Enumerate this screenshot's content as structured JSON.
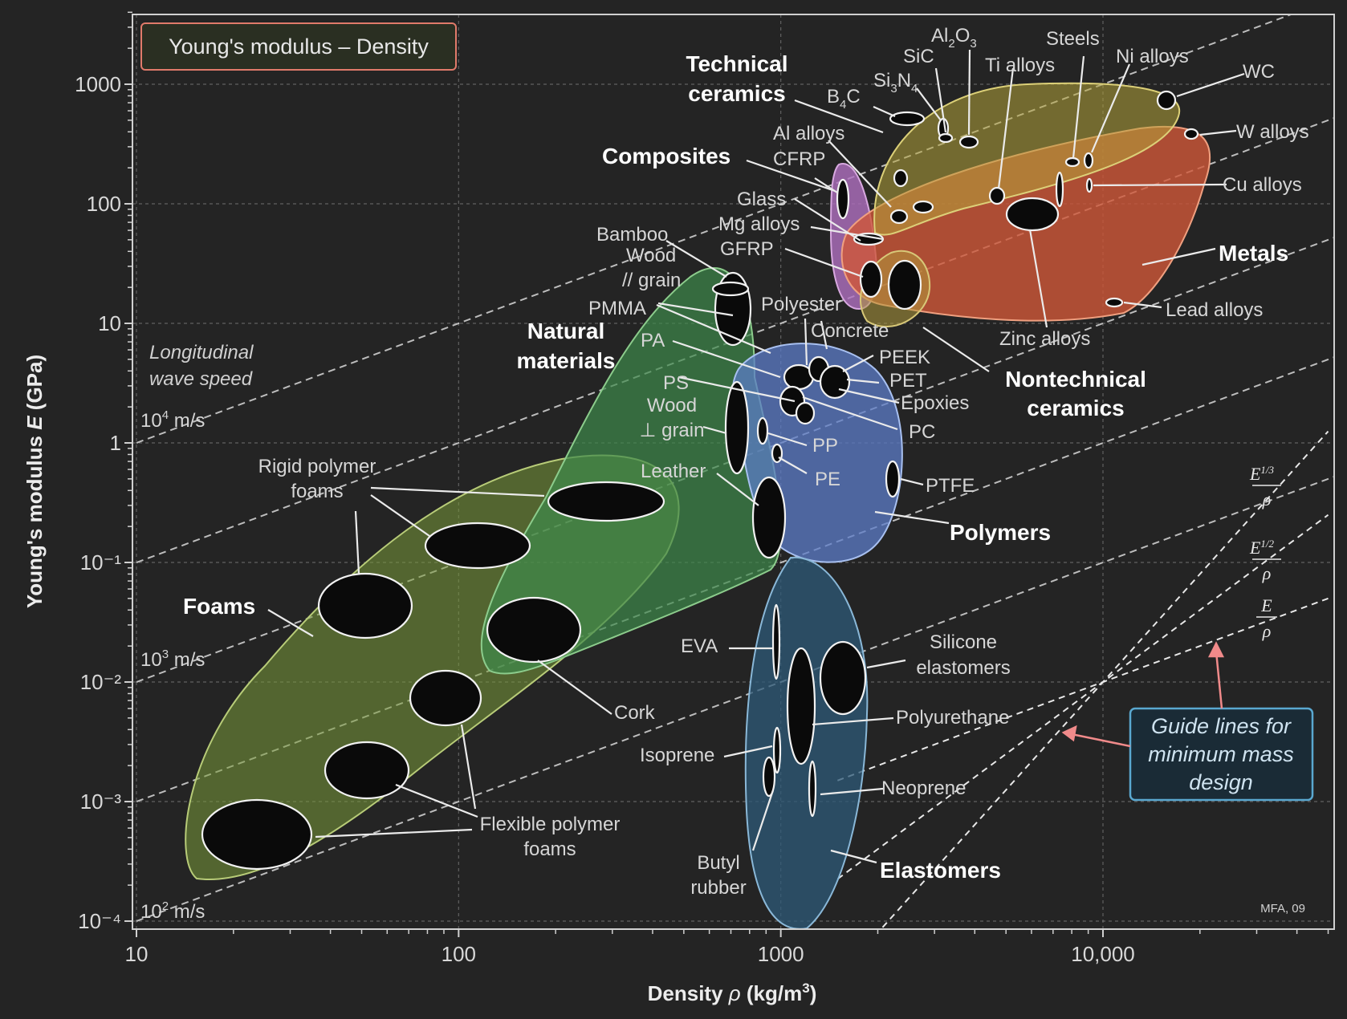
{
  "chart_data": {
    "type": "scatter",
    "title": "Young's modulus – Density",
    "xlabel": "Density ρ (kg/m³)",
    "ylabel": "Young's modulus E (GPa)",
    "xscale": "log",
    "yscale": "log",
    "xlim": [
      10,
      50000
    ],
    "ylim": [
      0.0001,
      4000
    ],
    "x_ticks": [
      {
        "value": 10,
        "label": "10"
      },
      {
        "value": 100,
        "label": "100"
      },
      {
        "value": 1000,
        "label": "1000"
      },
      {
        "value": 10000,
        "label": "10,000"
      }
    ],
    "y_ticks": [
      {
        "value": 1000,
        "label": "1000"
      },
      {
        "value": 100,
        "label": "100"
      },
      {
        "value": 10,
        "label": "10"
      },
      {
        "value": 1,
        "label": "1"
      },
      {
        "value": 0.1,
        "label": "10⁻¹"
      },
      {
        "value": 0.01,
        "label": "10⁻²"
      },
      {
        "value": 0.001,
        "label": "10⁻³"
      },
      {
        "value": 0.0001,
        "label": "10⁻⁴"
      }
    ],
    "grid": true,
    "families": [
      {
        "name": "Foams",
        "color": "#7a9a3a"
      },
      {
        "name": "Natural materials",
        "color": "#3f8a4c"
      },
      {
        "name": "Polymers",
        "color": "#5c7cc8"
      },
      {
        "name": "Elastomers",
        "color": "#2d5a78"
      },
      {
        "name": "Composites",
        "color": "#b070c0"
      },
      {
        "name": "Technical ceramics",
        "color": "#b4a43a"
      },
      {
        "name": "Metals",
        "color": "#d05838"
      },
      {
        "name": "Nontechnical ceramics",
        "color": "#b09a3c"
      }
    ],
    "materials": [
      {
        "name": "Rigid polymer foams",
        "density": 280,
        "modulus": 0.35
      },
      {
        "name": "Rigid polymer foams",
        "density": 110,
        "modulus": 0.14
      },
      {
        "name": "Foam",
        "density": 50,
        "modulus": 0.045
      },
      {
        "name": "Cork",
        "density": 190,
        "modulus": 0.028
      },
      {
        "name": "Flexible polymer foams",
        "density": 90,
        "modulus": 0.008
      },
      {
        "name": "Flexible polymer foams",
        "density": 48,
        "modulus": 0.0019
      },
      {
        "name": "Flexible polymer foams",
        "density": 24,
        "modulus": 0.0006
      },
      {
        "name": "Bamboo",
        "density": 700,
        "modulus": 17
      },
      {
        "name": "Wood // grain",
        "density": 690,
        "modulus": 11
      },
      {
        "name": "Wood ⊥ grain",
        "density": 700,
        "modulus": 1.2
      },
      {
        "name": "Leather",
        "density": 950,
        "modulus": 0.3
      },
      {
        "name": "PMMA",
        "density": 1180,
        "modulus": 3.2
      },
      {
        "name": "PA",
        "density": 1130,
        "modulus": 2.8
      },
      {
        "name": "PS",
        "density": 1050,
        "modulus": 2.5
      },
      {
        "name": "PEEK",
        "density": 1300,
        "modulus": 3.8
      },
      {
        "name": "PET",
        "density": 1350,
        "modulus": 3
      },
      {
        "name": "Epoxies",
        "density": 1200,
        "modulus": 2.3
      },
      {
        "name": "PC",
        "density": 1200,
        "modulus": 2.3
      },
      {
        "name": "PP",
        "density": 900,
        "modulus": 1.2
      },
      {
        "name": "PE",
        "density": 950,
        "modulus": 0.8
      },
      {
        "name": "PTFE",
        "density": 2200,
        "modulus": 0.5
      },
      {
        "name": "EVA",
        "density": 940,
        "modulus": 0.02
      },
      {
        "name": "Polyurethane",
        "density": 1150,
        "modulus": 0.012
      },
      {
        "name": "Silicone elastomers",
        "density": 1700,
        "modulus": 0.012
      },
      {
        "name": "Isoprene",
        "density": 930,
        "modulus": 0.002
      },
      {
        "name": "Neoprene",
        "density": 1250,
        "modulus": 0.002
      },
      {
        "name": "Butyl rubber",
        "density": 910,
        "modulus": 0.0015
      },
      {
        "name": "Glass",
        "density": 2500,
        "modulus": 70
      },
      {
        "name": "CFRP",
        "density": 1550,
        "modulus": 100
      },
      {
        "name": "GFRP",
        "density": 1800,
        "modulus": 20
      },
      {
        "name": "Concrete",
        "density": 2400,
        "modulus": 20
      },
      {
        "name": "Mg alloys",
        "density": 1800,
        "modulus": 45
      },
      {
        "name": "Al alloys",
        "density": 2700,
        "modulus": 72
      },
      {
        "name": "B₄C",
        "density": 2500,
        "modulus": 450
      },
      {
        "name": "Si₃N₄",
        "density": 3200,
        "modulus": 310
      },
      {
        "name": "SiC",
        "density": 3150,
        "modulus": 410
      },
      {
        "name": "Al₂O₃",
        "density": 3900,
        "modulus": 350
      },
      {
        "name": "Ti alloys",
        "density": 4500,
        "modulus": 110
      },
      {
        "name": "Steels",
        "density": 7800,
        "modulus": 210
      },
      {
        "name": "Ni alloys",
        "density": 8500,
        "modulus": 200
      },
      {
        "name": "Cu alloys",
        "density": 8900,
        "modulus": 130
      },
      {
        "name": "Zinc alloys",
        "density": 6500,
        "modulus": 80
      },
      {
        "name": "WC",
        "density": 15500,
        "modulus": 650
      },
      {
        "name": "W alloys",
        "density": 19000,
        "modulus": 380
      },
      {
        "name": "Lead alloys",
        "density": 11000,
        "modulus": 15
      }
    ],
    "guide_lines": {
      "formulas": [
        "E^1/3 / ρ",
        "E^1/2 / ρ",
        "E / ρ"
      ]
    }
  },
  "labels": {
    "title": "Young's modulus – Density",
    "x_axis_pre": "Density ",
    "x_axis_rho": "ρ",
    "x_axis_post": " (kg/m",
    "x_axis_sup": "3",
    "x_axis_end": ")",
    "y_axis_pre": "Young's modulus ",
    "y_axis_e": "E",
    "y_axis_post": " (GPa)",
    "wave_title_1": "Longitudinal",
    "wave_title_2": "wave speed",
    "wave_1e4_base": "10",
    "wave_1e4_exp": "4",
    "wave_1e4_unit": " m/s",
    "wave_1e3_base": "10",
    "wave_1e3_exp": "3",
    "wave_1e3_unit": " m/s",
    "wave_1e2_base": "10",
    "wave_1e2_exp": "2",
    "wave_1e2_unit": " m/s",
    "foams": "Foams",
    "natural_1": "Natural",
    "natural_2": "materials",
    "polymers": "Polymers",
    "elastomers": "Elastomers",
    "composites": "Composites",
    "tech_ceramics_1": "Technical",
    "tech_ceramics_2": "ceramics",
    "metals": "Metals",
    "nontech_1": "Nontechnical",
    "nontech_2": "ceramics",
    "rigid_foams_1": "Rigid polymer",
    "rigid_foams_2": "foams",
    "flex_foams_1": "Flexible polymer",
    "flex_foams_2": "foams",
    "cork": "Cork",
    "bamboo": "Bamboo",
    "wood_par_1": "Wood",
    "wood_par_2": "// grain",
    "pmma": "PMMA",
    "pa": "PA",
    "ps": "PS",
    "wood_perp_1": "Wood",
    "wood_perp_2": "⊥ grain",
    "leather": "Leather",
    "polyester": "Polyester",
    "concrete": "Concrete",
    "peek": "PEEK",
    "pet": "PET",
    "epoxies": "Epoxies",
    "pc": "PC",
    "pp": "PP",
    "pe": "PE",
    "ptfe": "PTFE",
    "eva": "EVA",
    "silicone_1": "Silicone",
    "silicone_2": "elastomers",
    "polyurethane": "Polyurethane",
    "isoprene": "Isoprene",
    "neoprene": "Neoprene",
    "butyl_1": "Butyl",
    "butyl_2": "rubber",
    "glass": "Glass",
    "mg": "Mg alloys",
    "gfrp": "GFRP",
    "cfrp": "CFRP",
    "al": "Al alloys",
    "b4c_pre": "B",
    "b4c_sub": "4",
    "b4c_post": "C",
    "si3n4_a": "Si",
    "si3n4_b": "3",
    "si3n4_c": "N",
    "si3n4_d": "4",
    "sic": "SiC",
    "al2o3_a": "Al",
    "al2o3_b": "2",
    "al2o3_c": "O",
    "al2o3_d": "3",
    "steels": "Steels",
    "ti": "Ti alloys",
    "ni": "Ni alloys",
    "wc": "WC",
    "w": "W alloys",
    "cu": "Cu alloys",
    "zinc": "Zinc alloys",
    "lead": "Lead alloys",
    "guide_1": "Guide lines for",
    "guide_2": "minimum mass",
    "guide_3": "design",
    "frac_e13_num": "E",
    "frac_e13_exp": "1/3",
    "frac_e12_num": "E",
    "frac_e12_exp": "1/2",
    "frac_e_num": "E",
    "frac_rho": "ρ",
    "credit": "MFA, 09"
  },
  "colors": {
    "background": "#242424",
    "foams": "#7a9a3a",
    "natural": "#3f8a4c",
    "polymers": "#5c7cc8",
    "elastomers": "#2d5a78",
    "composites": "#b070c0",
    "tech_ceramics": "#b4a43a",
    "metals": "#d05838",
    "nontech_ceramics": "#b09a3c",
    "title_box_border": "#e07a6a",
    "guide_box_border": "#5aa8d0",
    "guide_arrow": "#f08a8a"
  }
}
